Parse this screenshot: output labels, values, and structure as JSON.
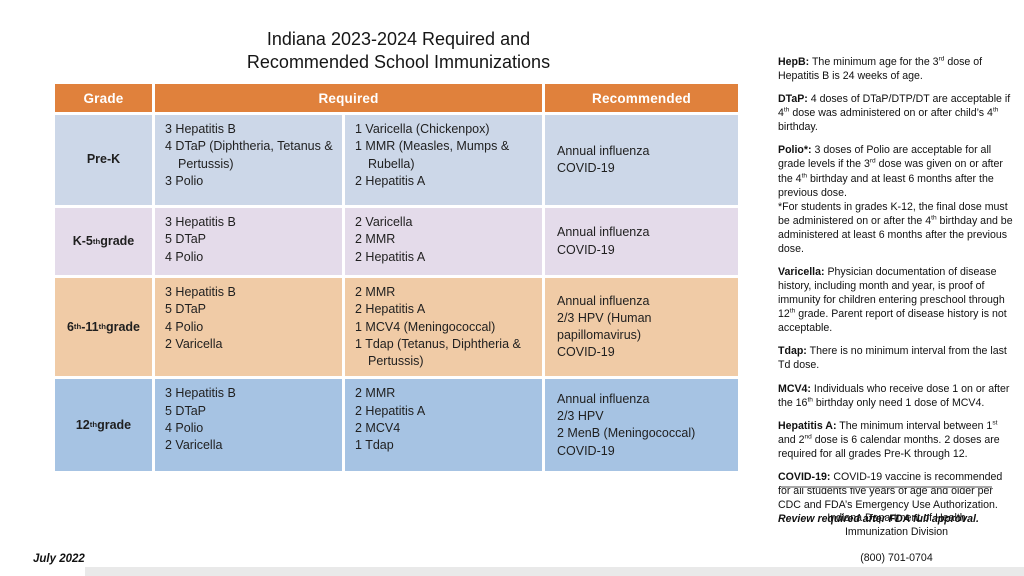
{
  "title": {
    "line1": "Indiana 2023-2024 Required and",
    "line2": "Recommended School Immunizations"
  },
  "table": {
    "header": {
      "grade": "Grade",
      "required": "Required",
      "recommended": "Recommended",
      "bg": "#e0813c",
      "text_color": "#ffffff"
    },
    "rows": [
      {
        "bg": "#ccd7e8",
        "grade": [
          {
            "t": "Pre-K"
          }
        ],
        "required1": [
          "3 Hepatitis B",
          "4 DTaP (Diphtheria, Tetanus & Pertussis)",
          "3 Polio"
        ],
        "required2": [
          "1 Varicella (Chickenpox)",
          "1 MMR (Measles, Mumps & Rubella)",
          "2 Hepatitis A"
        ],
        "recommended": [
          "Annual influenza",
          "COVID-19"
        ]
      },
      {
        "bg": "#e4dbea",
        "grade": [
          {
            "t": "K-5"
          },
          {
            "t": "th",
            "sup": 1
          },
          {
            "t": " grade"
          }
        ],
        "required1": [
          "3 Hepatitis B",
          "5 DTaP",
          "4 Polio"
        ],
        "required2": [
          "2 Varicella",
          "2 MMR",
          "2 Hepatitis A"
        ],
        "recommended": [
          "Annual influenza",
          "COVID-19"
        ]
      },
      {
        "bg": "#f0cba6",
        "grade": [
          {
            "t": "6"
          },
          {
            "t": "th",
            "sup": 1
          },
          {
            "t": "-11"
          },
          {
            "t": "th",
            "sup": 1
          },
          {
            "t": " grade"
          }
        ],
        "required1": [
          "3 Hepatitis B",
          "5 DTaP",
          "4 Polio",
          "2 Varicella"
        ],
        "required2": [
          "2 MMR",
          "2 Hepatitis A",
          "1 MCV4 (Meningococcal)",
          "1 Tdap (Tetanus, Diphtheria & Pertussis)"
        ],
        "recommended": [
          "Annual influenza",
          "2/3 HPV (Human papillomavirus)",
          "COVID-19"
        ]
      },
      {
        "bg": "#a6c3e3",
        "grade": [
          {
            "t": "12"
          },
          {
            "t": "th",
            "sup": 1
          },
          {
            "t": " grade"
          }
        ],
        "required1": [
          "3 Hepatitis B",
          "5 DTaP",
          "4 Polio",
          "2 Varicella"
        ],
        "required2": [
          "2 MMR",
          "2 Hepatitis A",
          "2 MCV4",
          "1 Tdap"
        ],
        "recommended": [
          "Annual influenza",
          "2/3 HPV",
          "2 MenB (Meningococcal)",
          "COVID-19"
        ]
      }
    ]
  },
  "notes": [
    [
      {
        "t": "HepB:",
        "b": 1
      },
      {
        "t": " The minimum age for the 3"
      },
      {
        "t": "rd",
        "sup": 1
      },
      {
        "t": " dose of Hepatitis B is 24 weeks of age."
      }
    ],
    [
      {
        "t": "DTaP:",
        "b": 1
      },
      {
        "t": " 4 doses of DTaP/DTP/DT are acceptable if 4"
      },
      {
        "t": "th",
        "sup": 1
      },
      {
        "t": " dose was administered on or after child’s 4"
      },
      {
        "t": "th",
        "sup": 1
      },
      {
        "t": " birthday."
      }
    ],
    [
      {
        "t": "Polio*:",
        "b": 1
      },
      {
        "t": " 3 doses of Polio are acceptable for all grade levels if the 3"
      },
      {
        "t": "rd",
        "sup": 1
      },
      {
        "t": " dose was given on or after the 4"
      },
      {
        "t": "th",
        "sup": 1
      },
      {
        "t": " birthday and at least 6 months after the previous dose."
      },
      {
        "br": 1
      },
      {
        "t": "*For students in grades K-12, the final dose must be administered on or after the 4"
      },
      {
        "t": "th",
        "sup": 1
      },
      {
        "t": " birthday and be administered at least 6 months after the previous dose."
      }
    ],
    [
      {
        "t": "Varicella:",
        "b": 1
      },
      {
        "t": " Physician documentation of disease history, including month and year, is proof of immunity for children entering preschool through 12"
      },
      {
        "t": "th",
        "sup": 1
      },
      {
        "t": " grade. Parent report of disease history is not acceptable."
      }
    ],
    [
      {
        "t": "Tdap:",
        "b": 1
      },
      {
        "t": " There is no minimum interval from the last Td dose."
      }
    ],
    [
      {
        "t": "MCV4:",
        "b": 1
      },
      {
        "t": " Individuals who receive dose 1 on or after the 16"
      },
      {
        "t": "th",
        "sup": 1
      },
      {
        "t": " birthday only need 1 dose of MCV4."
      }
    ],
    [
      {
        "t": "Hepatitis A:",
        "b": 1
      },
      {
        "t": " The minimum interval between 1"
      },
      {
        "t": "st",
        "sup": 1
      },
      {
        "t": " and 2"
      },
      {
        "t": "nd",
        "sup": 1
      },
      {
        "t": " dose is 6 calendar months. 2 doses are required for all grades Pre-K through 12."
      }
    ],
    [
      {
        "t": "COVID-19:",
        "b": 1
      },
      {
        "t": "  COVID-19 vaccine is recommended for all students five years of age and older per CDC and FDA’s Emergency Use Authorization. "
      },
      {
        "t": "Review required after FDA full approval.",
        "b": 1,
        "i": 1
      }
    ]
  ],
  "footer": {
    "org_line1": "Indiana Department of Health",
    "org_line2": "Immunization Division",
    "phone": "(800) 701-0704"
  },
  "date_label": "July 2022"
}
